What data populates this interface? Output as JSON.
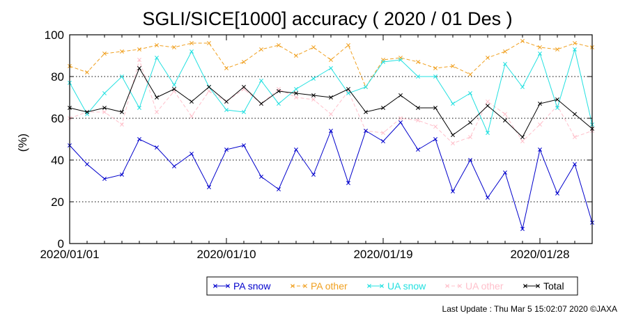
{
  "chart_data": {
    "type": "line",
    "title": "SGLI/SICE[1000] accuracy ( 2020 / 01 Des )",
    "ylabel": "(%)",
    "xlabel": "",
    "ylim": [
      0,
      100
    ],
    "yticks": [
      "0",
      "20",
      "40",
      "60",
      "80",
      "100"
    ],
    "grid": "horizontal-dotted",
    "x_tick_labels": [
      {
        "label": "2020/01/01",
        "day": 1
      },
      {
        "label": "2020/01/10",
        "day": 10
      },
      {
        "label": "2020/01/19",
        "day": 19
      },
      {
        "label": "2020/01/28",
        "day": 28
      }
    ],
    "x": [
      1,
      2,
      3,
      4,
      5,
      6,
      7,
      8,
      9,
      10,
      11,
      12,
      13,
      14,
      15,
      16,
      17,
      18,
      19,
      20,
      21,
      22,
      23,
      24,
      25,
      26,
      27,
      28,
      29,
      30,
      31
    ],
    "legend_placement": "bottom-right",
    "series": [
      {
        "name": "PA snow",
        "color": "#0000cc",
        "dash": "solid",
        "values": [
          47,
          38,
          31,
          33,
          50,
          46,
          37,
          43,
          27,
          45,
          47,
          32,
          26,
          45,
          33,
          54,
          29,
          54,
          49,
          58,
          45,
          50,
          25,
          40,
          22,
          34,
          7,
          45,
          24,
          38,
          10
        ]
      },
      {
        "name": "PA other",
        "color": "#f0a020",
        "dash": "dashed",
        "values": [
          85,
          82,
          91,
          92,
          93,
          95,
          94,
          96,
          96,
          84,
          87,
          93,
          95,
          90,
          94,
          88,
          95,
          75,
          88,
          89,
          87,
          84,
          85,
          81,
          89,
          92,
          97,
          94,
          93,
          96,
          94
        ]
      },
      {
        "name": "UA snow",
        "color": "#22e0e0",
        "dash": "solid",
        "values": [
          77,
          62,
          72,
          80,
          65,
          89,
          76,
          92,
          75,
          64,
          63,
          78,
          67,
          74,
          79,
          84,
          72,
          75,
          87,
          88,
          80,
          80,
          67,
          72,
          53,
          86,
          75,
          91,
          65,
          93,
          57
        ]
      },
      {
        "name": "UA other",
        "color": "#ffc0cb",
        "dash": "dashed",
        "values": [
          60,
          63,
          63,
          57,
          88,
          63,
          73,
          61,
          73,
          68,
          74,
          67,
          74,
          70,
          69,
          62,
          73,
          54,
          53,
          60,
          59,
          56,
          48,
          51,
          68,
          62,
          49,
          57,
          66,
          51,
          54
        ]
      },
      {
        "name": "Total",
        "color": "#000000",
        "dash": "solid",
        "values": [
          65,
          63,
          65,
          63,
          84,
          70,
          74,
          68,
          75,
          68,
          75,
          67,
          73,
          72,
          71,
          70,
          74,
          63,
          65,
          71,
          65,
          65,
          52,
          58,
          66,
          59,
          51,
          67,
          69,
          62,
          55
        ]
      }
    ]
  },
  "footer": "Last Update : Thu Mar  5 15:02:07 2020  ©JAXA"
}
